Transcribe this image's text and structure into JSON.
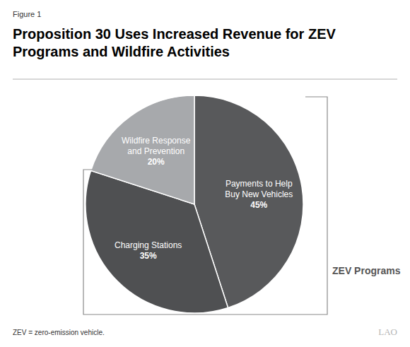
{
  "chart_data": {
    "type": "pie",
    "figure_label": "Figure 1",
    "title": "Proposition 30 Uses Increased Revenue for ZEV Programs and Wildfire Activities",
    "categories": [
      "Payments to Help Buy New Vehicles",
      "Charging Stations",
      "Wildfire Response and Prevention"
    ],
    "values": [
      45,
      35,
      20
    ],
    "value_labels": [
      "45%",
      "35%",
      "20%"
    ],
    "colors": [
      "#58595b",
      "#4f5052",
      "#a7a9ac"
    ],
    "data_labels": true,
    "group_label": "ZEV Programs",
    "footnote": "ZEV = zero-emission vehicle.",
    "logo": "LAO"
  }
}
